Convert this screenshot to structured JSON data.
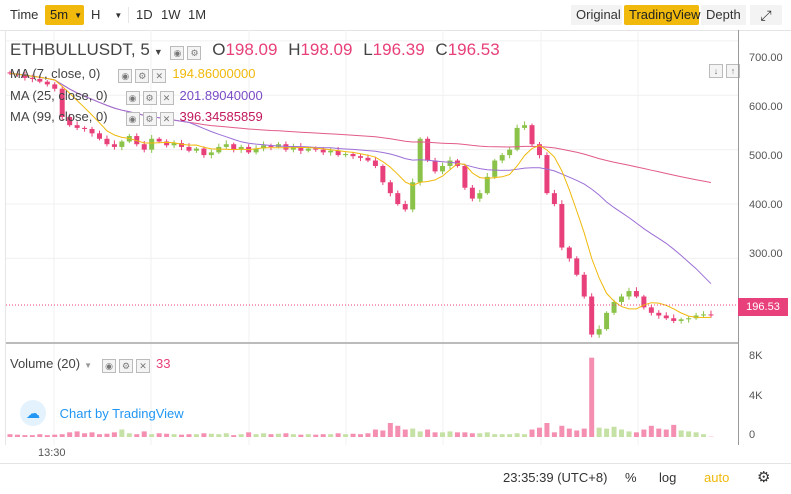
{
  "toolbar": {
    "time_label": "Time",
    "interval": "5m",
    "chart_type": "H",
    "ranges": [
      "1D",
      "1W",
      "1M"
    ],
    "views": [
      "Original",
      "TradingView",
      "Depth"
    ],
    "active_view": "TradingView"
  },
  "legend": {
    "symbol": "ETHBULLUSDT, 5",
    "o_label": "O",
    "o": "198.09",
    "h_label": "H",
    "h": "198.09",
    "l_label": "L",
    "l": "196.39",
    "c_label": "C",
    "c": "196.53",
    "ma7_label": "MA (7, close, 0)",
    "ma7": "194.86000000",
    "ma25_label": "MA (25, close, 0)",
    "ma25": "201.89040000",
    "ma99_label": "MA (99, close, 0)",
    "ma99": "396.34585859",
    "volume_label": "Volume (20)",
    "volume": "33",
    "brand": "Chart by TradingView"
  },
  "colors": {
    "up": "#8bc34a",
    "down": "#e8407a",
    "ma7": "#f0b90b",
    "ma25": "#9c6fd6",
    "ma99": "#e25b8a",
    "accent": "#f0b90b"
  },
  "price_axis": {
    "ticks": [
      "700.00",
      "600.00",
      "500.00",
      "400.00",
      "300.00"
    ],
    "last_price": "196.53"
  },
  "volume_axis": {
    "ticks": [
      "8K",
      "4K",
      "0"
    ]
  },
  "time_axis": {
    "ticks": [
      "13:30"
    ]
  },
  "footer": {
    "clock": "23:35:39 (UTC+8)",
    "percent": "%",
    "log": "log",
    "auto": "auto"
  },
  "chart_data": {
    "type": "candlestick",
    "ylim": [
      150,
      720
    ],
    "close": [
      640,
      638,
      632,
      630,
      625,
      620,
      612,
      560,
      545,
      540,
      538,
      530,
      520,
      510,
      505,
      515,
      525,
      510,
      500,
      520,
      515,
      508,
      512,
      505,
      498,
      502,
      490,
      495,
      505,
      510,
      500,
      505,
      495,
      502,
      508,
      505,
      510,
      500,
      505,
      498,
      502,
      500,
      495,
      498,
      490,
      492,
      488,
      485,
      480,
      470,
      440,
      420,
      400,
      390,
      440,
      520,
      480,
      460,
      470,
      480,
      470,
      430,
      410,
      420,
      450,
      480,
      490,
      500,
      540,
      545,
      510,
      490,
      420,
      400,
      320,
      300,
      270,
      230,
      160,
      170,
      200,
      220,
      230,
      240,
      230,
      210,
      200,
      195,
      190,
      185,
      188,
      190,
      195,
      197,
      196
    ],
    "volume": [
      300,
      250,
      200,
      200,
      300,
      200,
      250,
      300,
      500,
      600,
      400,
      500,
      300,
      350,
      500,
      800,
      400,
      300,
      600,
      300,
      400,
      350,
      300,
      250,
      300,
      300,
      400,
      350,
      300,
      400,
      200,
      300,
      500,
      300,
      400,
      300,
      350,
      400,
      300,
      250,
      300,
      250,
      300,
      300,
      400,
      300,
      350,
      300,
      400,
      800,
      700,
      1500,
      1200,
      800,
      900,
      600,
      800,
      500,
      500,
      600,
      500,
      500,
      400,
      400,
      500,
      300,
      300,
      300,
      400,
      300,
      800,
      1000,
      1500,
      500,
      1200,
      900,
      700,
      900,
      8500,
      1000,
      900,
      1100,
      800,
      600,
      500,
      800,
      1200,
      900,
      800,
      1300,
      700,
      600,
      500,
      300,
      33
    ]
  }
}
